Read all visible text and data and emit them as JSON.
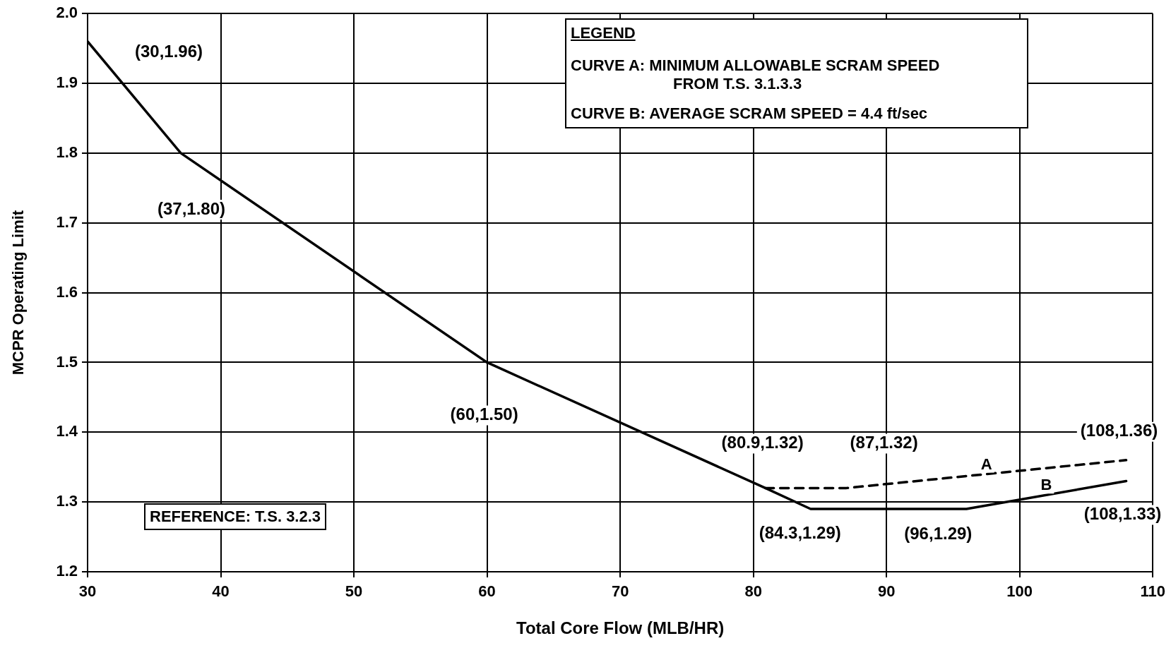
{
  "chart_data": {
    "type": "line",
    "xlabel": "Total Core Flow (MLB/HR)",
    "ylabel": "MCPR Operating Limit",
    "xlim": [
      30,
      110
    ],
    "xticks": [
      30,
      40,
      50,
      60,
      70,
      80,
      90,
      100,
      110
    ],
    "ylim": [
      1.2,
      2.0
    ],
    "yticks": [
      1.2,
      1.3,
      1.4,
      1.5,
      1.6,
      1.7,
      1.8,
      1.9,
      {
        "value": 2.0,
        "label": "2.0"
      }
    ],
    "grid": true,
    "legend": false,
    "marker": "none",
    "series": [
      {
        "name": "A",
        "color": "#000000",
        "line_style": "dashed",
        "x": [
          80.9,
          87,
          108
        ],
        "values": [
          1.32,
          1.32,
          1.36
        ]
      },
      {
        "name": "B",
        "color": "#000000",
        "line_style": "solid",
        "x": [
          30,
          37,
          60,
          80.9,
          84.3,
          96,
          108
        ],
        "values": [
          1.96,
          1.8,
          1.5,
          1.32,
          1.29,
          1.29,
          1.33
        ]
      }
    ],
    "annotations": [
      "LEGEND",
      "CURVE A: MINIMUM ALLOWABLE SCRAM SPEED FROM T.S. 3.1.3.3",
      "CURVE B: AVERAGE SCRAM SPEED = 4.4 ft/sec",
      {
        "text": "(30,1.96)",
        "x": 30,
        "y": 1.96
      },
      {
        "text": "(37,1.80)",
        "x": 37,
        "y": 1.8
      },
      {
        "text": "(60,1.50)",
        "x": 60,
        "y": 1.5
      },
      {
        "text": "(80.9,1.32)",
        "x": 80.9,
        "y": 1.32
      },
      {
        "text": "(87,1.32)",
        "x": 87,
        "y": 1.32
      },
      {
        "text": "(108,1.36)",
        "x": 108,
        "y": 1.36
      },
      {
        "text": "(84.3,1.29)",
        "x": 84.3,
        "y": 1.29
      },
      {
        "text": "(96,1.29)",
        "x": 96,
        "y": 1.29
      },
      {
        "text": "(108,1.33)",
        "x": 108,
        "y": 1.33
      },
      "REFERENCE: T.S. 3.2.3"
    ]
  }
}
